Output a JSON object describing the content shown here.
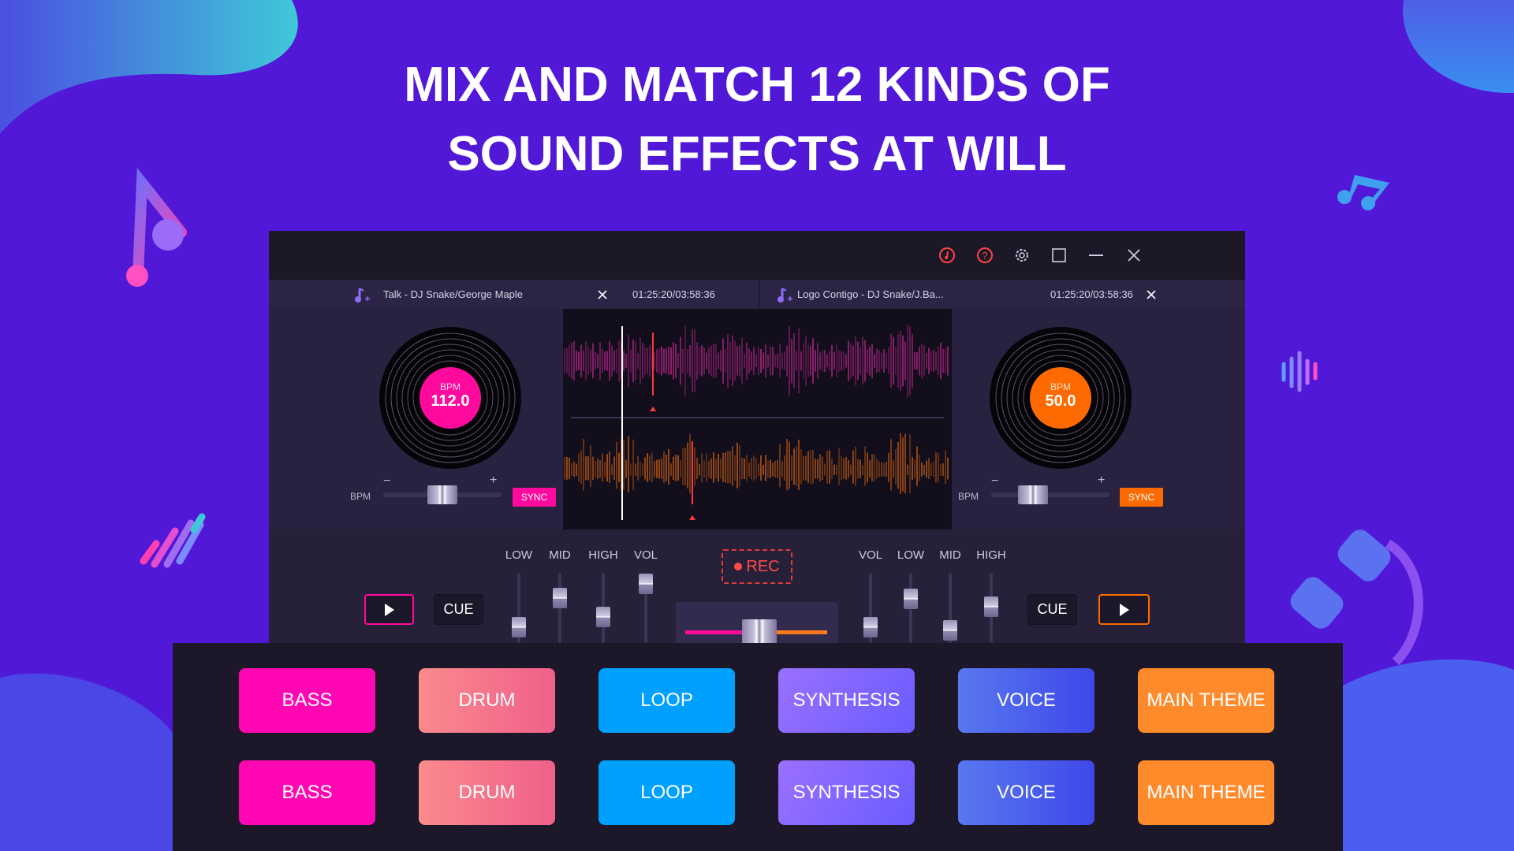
{
  "headline": {
    "line1": "MIX AND MATCH 12 KINDS OF",
    "line2": "SOUND EFFECTS AT WILL"
  },
  "colors": {
    "background": "#5118d8",
    "deckA": "#ff0a9c",
    "deckB": "#ff6a00",
    "rec": "#ff4444"
  },
  "titlebar": {
    "icons": [
      "music-disc-icon",
      "help-icon",
      "gear-icon",
      "maximize-icon",
      "minimize-icon",
      "close-icon"
    ]
  },
  "deckA": {
    "track": "Talk - DJ Snake/George Maple",
    "time": "01:25:20/03:58:36",
    "bpm_label": "BPM",
    "bpm": "112.0",
    "slider_label": "BPM",
    "minus": "−",
    "plus": "+",
    "sync": "SYNC",
    "pitch": 0.5
  },
  "deckB": {
    "track": "Logo Contigo - DJ Snake/J.Ba...",
    "time": "01:25:20/03:58:36",
    "bpm_label": "BPM",
    "bpm": "50.0",
    "slider_label": "BPM",
    "minus": "−",
    "plus": "+",
    "sync": "SYNC",
    "pitch": 0.3
  },
  "mixer": {
    "left": [
      {
        "label": "LOW",
        "level": 0.17
      },
      {
        "label": "MID",
        "level": 0.66
      },
      {
        "label": "HIGH",
        "level": 0.34
      },
      {
        "label": "VOL",
        "level": 0.9
      }
    ],
    "right": [
      {
        "label": "VOL",
        "level": 0.17
      },
      {
        "label": "LOW",
        "level": 0.64
      },
      {
        "label": "MID",
        "level": 0.12
      },
      {
        "label": "HIGH",
        "level": 0.51
      }
    ],
    "rec": "REC",
    "cue": "CUE",
    "crossfader": 0.52
  },
  "pads": {
    "row1": [
      "BASS",
      "DRUM",
      "LOOP",
      "SYNTHESIS",
      "VOICE",
      "MAIN THEME"
    ],
    "row2": [
      "BASS",
      "DRUM",
      "LOOP",
      "SYNTHESIS",
      "VOICE",
      "MAIN THEME"
    ]
  }
}
